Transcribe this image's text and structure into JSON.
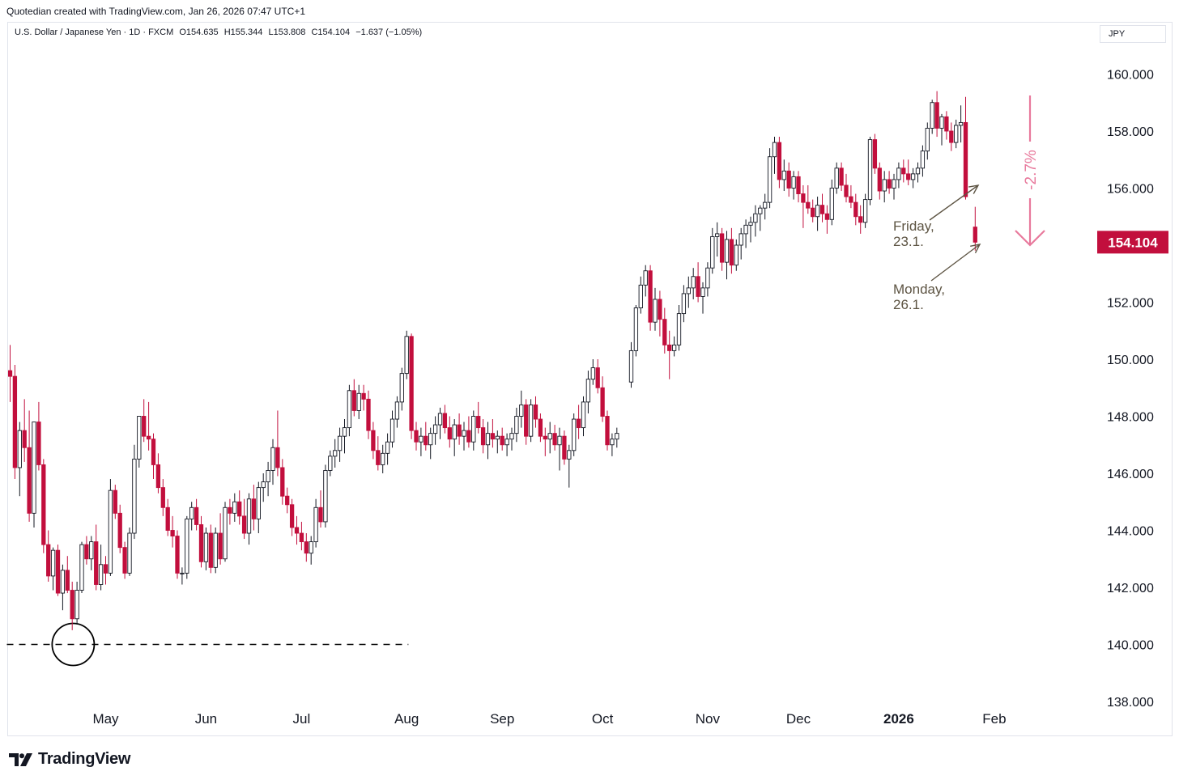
{
  "header": {
    "text": "Quotedian created with TradingView.com, Jan 26, 2026 07:47 UTC+1"
  },
  "legend": {
    "symbol": "U.S. Dollar / Japanese Yen · 1D · FXCM",
    "open": "O154.635",
    "high": "H155.344",
    "low": "L153.808",
    "close": "C154.104",
    "change": "−1.637 (−1.05%)"
  },
  "currency": "JPY",
  "brand": "TradingView",
  "colors": {
    "up": "#ffffff",
    "up_border": "#131722",
    "down": "#c20f3d",
    "price_label": "#c20f3d",
    "annotation": "#e8799c",
    "note": "#5d5443"
  },
  "chart_data": {
    "type": "candlestick",
    "title": "U.S. Dollar / Japanese Yen",
    "ylabel": "JPY",
    "ylim": [
      137.8,
      161.0
    ],
    "yticks": [
      138,
      140,
      142,
      144,
      146,
      148,
      150,
      152,
      154,
      156,
      158,
      160
    ],
    "ytick_labels": [
      "138.000",
      "140.000",
      "142.000",
      "144.000",
      "146.000",
      "148.000",
      "150.000",
      "152.000",
      "154.000",
      "156.000",
      "158.000",
      "160.000"
    ],
    "xticks": [
      {
        "label": "May",
        "bar": 20
      },
      {
        "label": "Jun",
        "bar": 41
      },
      {
        "label": "Jul",
        "bar": 61
      },
      {
        "label": "Aug",
        "bar": 83
      },
      {
        "label": "Sep",
        "bar": 103
      },
      {
        "label": "Oct",
        "bar": 124
      },
      {
        "label": "Nov",
        "bar": 146
      },
      {
        "label": "Dec",
        "bar": 165
      },
      {
        "label": "2026",
        "bar": 186
      },
      {
        "label": "Feb",
        "bar": 206
      }
    ],
    "current_price": "154.104",
    "current_value": 154.104,
    "candles": [
      [
        0,
        149.6,
        150.5,
        148.5,
        149.4
      ],
      [
        1,
        149.4,
        149.8,
        145.8,
        146.2
      ],
      [
        2,
        146.2,
        147.8,
        145.2,
        147.5
      ],
      [
        3,
        147.5,
        148.6,
        146.4,
        146.9
      ],
      [
        4,
        146.9,
        148.2,
        144.3,
        144.6
      ],
      [
        5,
        144.6,
        147.8,
        144.1,
        147.8
      ],
      [
        6,
        147.8,
        148.5,
        146.1,
        146.3
      ],
      [
        7,
        146.3,
        146.5,
        143.2,
        143.5
      ],
      [
        8,
        143.5,
        144.0,
        142.2,
        142.4
      ],
      [
        9,
        142.4,
        143.4,
        141.9,
        143.3
      ],
      [
        10,
        143.3,
        143.5,
        141.7,
        141.8
      ],
      [
        11,
        141.8,
        142.8,
        141.2,
        142.6
      ],
      [
        12,
        142.6,
        143.1,
        141.8,
        141.9
      ],
      [
        13,
        141.9,
        142.2,
        140.5,
        140.9
      ],
      [
        14,
        140.9,
        142.2,
        140.7,
        141.9
      ],
      [
        15,
        141.9,
        143.6,
        141.8,
        143.5
      ],
      [
        16,
        143.5,
        143.8,
        142.8,
        143.0
      ],
      [
        17,
        143.0,
        143.8,
        142.6,
        143.6
      ],
      [
        18,
        143.6,
        144.2,
        141.9,
        142.1
      ],
      [
        19,
        142.1,
        143.5,
        141.9,
        142.8
      ],
      [
        20,
        142.8,
        143.1,
        142.1,
        142.5
      ],
      [
        21,
        142.5,
        145.8,
        142.4,
        145.4
      ],
      [
        22,
        145.4,
        145.6,
        144.4,
        144.6
      ],
      [
        23,
        144.6,
        144.9,
        143.2,
        143.4
      ],
      [
        24,
        143.4,
        143.6,
        142.3,
        142.5
      ],
      [
        25,
        142.5,
        144.1,
        142.4,
        143.9
      ],
      [
        26,
        143.9,
        147.0,
        143.7,
        146.5
      ],
      [
        27,
        146.5,
        148.0,
        146.2,
        148.0
      ],
      [
        28,
        148.0,
        148.6,
        147.1,
        147.3
      ],
      [
        29,
        147.3,
        148.5,
        146.8,
        147.2
      ],
      [
        30,
        147.2,
        147.4,
        145.8,
        146.3
      ],
      [
        31,
        146.3,
        146.7,
        145.3,
        145.5
      ],
      [
        32,
        145.5,
        145.8,
        144.5,
        144.8
      ],
      [
        33,
        144.8,
        145.1,
        143.8,
        144.0
      ],
      [
        34,
        144.0,
        144.5,
        143.4,
        143.8
      ],
      [
        35,
        143.8,
        144.0,
        142.3,
        142.5
      ],
      [
        36,
        142.5,
        142.7,
        142.1,
        142.5
      ],
      [
        37,
        142.5,
        144.5,
        142.3,
        144.4
      ],
      [
        38,
        144.4,
        145.0,
        144.0,
        144.8
      ],
      [
        39,
        144.8,
        145.1,
        144.0,
        144.2
      ],
      [
        40,
        144.2,
        144.5,
        142.7,
        142.9
      ],
      [
        41,
        142.9,
        144.1,
        142.6,
        143.9
      ],
      [
        42,
        143.9,
        144.2,
        142.5,
        142.7
      ],
      [
        43,
        142.7,
        144.1,
        142.5,
        143.9
      ],
      [
        44,
        143.9,
        144.6,
        142.8,
        143.0
      ],
      [
        45,
        143.0,
        145.0,
        142.9,
        144.8
      ],
      [
        46,
        144.8,
        145.1,
        144.2,
        144.6
      ],
      [
        47,
        144.6,
        145.3,
        144.3,
        145.0
      ],
      [
        48,
        145.0,
        145.4,
        144.2,
        144.5
      ],
      [
        49,
        144.5,
        145.1,
        143.7,
        143.9
      ],
      [
        50,
        143.9,
        145.3,
        143.5,
        145.1
      ],
      [
        51,
        145.1,
        145.6,
        144.0,
        144.4
      ],
      [
        52,
        144.4,
        145.7,
        143.9,
        145.5
      ],
      [
        53,
        145.5,
        146.0,
        145.0,
        145.7
      ],
      [
        54,
        145.7,
        146.4,
        145.2,
        146.1
      ],
      [
        55,
        146.1,
        147.2,
        145.6,
        146.9
      ],
      [
        56,
        146.9,
        148.2,
        145.9,
        146.2
      ],
      [
        57,
        146.2,
        146.5,
        144.9,
        145.2
      ],
      [
        58,
        145.2,
        145.5,
        144.6,
        144.9
      ],
      [
        59,
        144.9,
        145.1,
        143.8,
        144.1
      ],
      [
        60,
        144.1,
        144.5,
        143.5,
        143.9
      ],
      [
        61,
        143.9,
        144.3,
        143.3,
        143.6
      ],
      [
        62,
        143.6,
        143.9,
        142.9,
        143.2
      ],
      [
        63,
        143.2,
        143.8,
        142.8,
        143.6
      ],
      [
        64,
        143.6,
        145.1,
        143.4,
        144.8
      ],
      [
        65,
        144.8,
        145.4,
        144.1,
        144.3
      ],
      [
        66,
        144.3,
        146.3,
        144.1,
        146.1
      ],
      [
        67,
        146.1,
        146.8,
        145.9,
        146.6
      ],
      [
        68,
        146.6,
        147.2,
        146.2,
        146.8
      ],
      [
        69,
        146.8,
        147.6,
        146.4,
        147.3
      ],
      [
        70,
        147.3,
        147.9,
        146.7,
        147.6
      ],
      [
        71,
        147.6,
        149.1,
        147.3,
        148.9
      ],
      [
        72,
        148.9,
        149.3,
        148.0,
        148.2
      ],
      [
        73,
        148.2,
        149.1,
        147.9,
        148.8
      ],
      [
        74,
        148.8,
        149.1,
        148.2,
        148.6
      ],
      [
        75,
        148.6,
        148.9,
        147.2,
        147.5
      ],
      [
        76,
        147.5,
        147.8,
        146.5,
        146.8
      ],
      [
        77,
        146.8,
        147.3,
        146.1,
        146.3
      ],
      [
        78,
        146.3,
        147.0,
        146.0,
        146.7
      ],
      [
        79,
        146.7,
        147.4,
        146.3,
        147.1
      ],
      [
        80,
        147.1,
        148.2,
        146.9,
        147.9
      ],
      [
        81,
        147.9,
        148.7,
        147.6,
        148.5
      ],
      [
        82,
        148.5,
        149.7,
        148.2,
        149.5
      ],
      [
        83,
        149.5,
        151.0,
        149.3,
        150.8
      ],
      [
        84,
        150.8,
        150.9,
        147.2,
        147.5
      ],
      [
        85,
        147.5,
        147.8,
        146.8,
        147.1
      ],
      [
        86,
        147.1,
        147.6,
        146.6,
        147.3
      ],
      [
        87,
        147.3,
        147.8,
        146.8,
        147.0
      ],
      [
        88,
        147.0,
        147.6,
        146.5,
        147.4
      ],
      [
        89,
        147.4,
        148.0,
        147.0,
        147.7
      ],
      [
        90,
        147.7,
        148.3,
        147.2,
        148.1
      ],
      [
        91,
        148.1,
        148.4,
        147.4,
        147.6
      ],
      [
        92,
        147.6,
        148.0,
        146.9,
        147.2
      ],
      [
        93,
        147.2,
        147.9,
        146.6,
        147.7
      ],
      [
        94,
        147.7,
        148.1,
        147.0,
        147.3
      ],
      [
        95,
        147.3,
        147.8,
        146.8,
        147.5
      ],
      [
        96,
        147.5,
        148.0,
        146.9,
        147.1
      ],
      [
        97,
        147.1,
        148.2,
        146.8,
        148.0
      ],
      [
        98,
        148.0,
        148.5,
        147.4,
        147.6
      ],
      [
        99,
        147.6,
        147.9,
        146.7,
        147.0
      ],
      [
        100,
        147.0,
        147.8,
        146.5,
        147.4
      ],
      [
        101,
        147.4,
        147.9,
        146.9,
        147.2
      ],
      [
        102,
        147.2,
        147.5,
        146.7,
        147.3
      ],
      [
        103,
        147.3,
        147.6,
        146.8,
        147.0
      ],
      [
        104,
        147.0,
        147.4,
        146.6,
        147.2
      ],
      [
        105,
        147.2,
        147.6,
        146.8,
        147.4
      ],
      [
        106,
        147.4,
        148.3,
        147.1,
        148.0
      ],
      [
        107,
        148.0,
        148.9,
        147.6,
        148.4
      ],
      [
        108,
        148.4,
        148.6,
        147.0,
        147.3
      ],
      [
        109,
        147.3,
        148.6,
        147.1,
        148.4
      ],
      [
        110,
        148.4,
        148.7,
        147.6,
        147.9
      ],
      [
        111,
        147.9,
        148.1,
        147.1,
        147.3
      ],
      [
        112,
        147.3,
        147.6,
        146.6,
        147.2
      ],
      [
        113,
        147.2,
        147.8,
        146.7,
        147.4
      ],
      [
        114,
        147.4,
        147.7,
        146.8,
        147.0
      ],
      [
        115,
        147.0,
        147.6,
        146.1,
        147.3
      ],
      [
        116,
        147.3,
        147.5,
        146.3,
        146.5
      ],
      [
        117,
        146.5,
        147.0,
        145.5,
        146.8
      ],
      [
        118,
        146.8,
        148.1,
        146.6,
        147.9
      ],
      [
        119,
        147.9,
        148.4,
        147.2,
        147.6
      ],
      [
        120,
        147.6,
        148.7,
        147.3,
        148.5
      ],
      [
        121,
        148.5,
        149.6,
        148.1,
        149.3
      ],
      [
        122,
        149.3,
        150.0,
        149.1,
        149.7
      ],
      [
        123,
        149.7,
        150.0,
        148.8,
        149.0
      ],
      [
        124,
        149.0,
        149.4,
        147.8,
        148.0
      ],
      [
        125,
        148.0,
        148.2,
        146.8,
        147.0
      ],
      [
        126,
        147.0,
        147.4,
        146.6,
        147.2
      ],
      [
        127,
        147.2,
        147.6,
        146.9,
        147.4
      ]
    ],
    "candles_recent": [
      [
        130,
        149.2,
        150.6,
        149.0,
        150.3
      ],
      [
        131,
        150.3,
        151.9,
        150.1,
        151.8
      ],
      [
        132,
        151.8,
        152.9,
        151.6,
        152.6
      ],
      [
        133,
        152.6,
        153.3,
        152.2,
        153.1
      ],
      [
        134,
        153.1,
        153.3,
        151.0,
        151.3
      ],
      [
        135,
        151.3,
        152.5,
        151.0,
        152.1
      ],
      [
        136,
        152.1,
        152.4,
        150.8,
        151.4
      ],
      [
        137,
        151.4,
        151.8,
        150.2,
        150.5
      ],
      [
        138,
        150.5,
        151.0,
        149.3,
        150.3
      ],
      [
        139,
        150.3,
        150.8,
        150.1,
        150.5
      ],
      [
        140,
        150.5,
        151.9,
        150.3,
        151.6
      ],
      [
        141,
        151.6,
        152.6,
        151.3,
        152.3
      ],
      [
        142,
        152.3,
        152.9,
        151.8,
        152.5
      ],
      [
        143,
        152.5,
        153.2,
        152.1,
        152.9
      ],
      [
        144,
        152.9,
        153.4,
        152.0,
        152.2
      ],
      [
        145,
        152.2,
        152.7,
        151.6,
        152.5
      ],
      [
        146,
        152.5,
        153.4,
        152.2,
        153.2
      ],
      [
        147,
        153.2,
        154.6,
        153.0,
        154.3
      ],
      [
        148,
        154.3,
        154.8,
        153.6,
        154.4
      ],
      [
        149,
        154.4,
        154.6,
        153.1,
        153.4
      ],
      [
        150,
        153.4,
        154.5,
        152.8,
        154.2
      ],
      [
        151,
        154.2,
        154.6,
        153.0,
        153.3
      ],
      [
        152,
        153.3,
        154.2,
        153.1,
        154.0
      ],
      [
        153,
        154.0,
        154.6,
        153.5,
        154.4
      ],
      [
        154,
        154.4,
        154.9,
        153.9,
        154.7
      ],
      [
        155,
        154.7,
        155.0,
        154.1,
        154.8
      ],
      [
        156,
        154.8,
        155.4,
        154.3,
        155.1
      ],
      [
        157,
        155.1,
        155.4,
        154.5,
        155.3
      ],
      [
        158,
        155.3,
        155.8,
        154.9,
        155.5
      ],
      [
        159,
        155.5,
        157.4,
        155.3,
        157.1
      ],
      [
        160,
        157.1,
        157.8,
        156.5,
        157.6
      ],
      [
        161,
        157.6,
        157.8,
        156.0,
        156.3
      ],
      [
        162,
        156.3,
        157.0,
        155.9,
        156.6
      ],
      [
        163,
        156.6,
        156.9,
        155.7,
        156.0
      ],
      [
        164,
        156.0,
        156.6,
        155.6,
        156.4
      ],
      [
        165,
        156.4,
        156.6,
        155.5,
        155.8
      ],
      [
        166,
        155.8,
        156.1,
        154.6,
        155.5
      ],
      [
        167,
        155.5,
        156.1,
        155.1,
        155.3
      ],
      [
        168,
        155.3,
        155.6,
        154.8,
        155.0
      ],
      [
        169,
        155.0,
        155.7,
        154.5,
        155.4
      ],
      [
        170,
        155.4,
        155.8,
        154.8,
        155.1
      ],
      [
        171,
        155.1,
        155.4,
        154.4,
        154.9
      ],
      [
        172,
        154.9,
        156.3,
        154.7,
        156.0
      ],
      [
        173,
        156.0,
        156.9,
        155.8,
        156.7
      ],
      [
        174,
        156.7,
        156.9,
        155.9,
        156.1
      ],
      [
        175,
        156.1,
        156.5,
        155.5,
        155.7
      ],
      [
        176,
        155.7,
        156.1,
        155.3,
        155.5
      ],
      [
        177,
        155.5,
        155.8,
        154.7,
        155.0
      ],
      [
        178,
        155.0,
        155.4,
        154.4,
        154.8
      ],
      [
        179,
        154.8,
        155.8,
        154.6,
        155.6
      ],
      [
        180,
        155.6,
        157.8,
        155.4,
        157.7
      ],
      [
        181,
        157.7,
        157.9,
        156.5,
        156.7
      ],
      [
        182,
        156.7,
        156.9,
        155.6,
        155.9
      ],
      [
        183,
        155.9,
        156.6,
        155.5,
        156.3
      ],
      [
        184,
        156.3,
        156.6,
        155.8,
        156.0
      ],
      [
        185,
        156.0,
        156.5,
        155.6,
        156.3
      ],
      [
        186,
        156.3,
        156.9,
        156.0,
        156.7
      ],
      [
        187,
        156.7,
        157.0,
        156.2,
        156.5
      ],
      [
        188,
        156.5,
        157.0,
        156.1,
        156.3
      ],
      [
        189,
        156.3,
        156.7,
        156.0,
        156.5
      ],
      [
        190,
        156.5,
        156.9,
        156.2,
        156.7
      ],
      [
        191,
        156.7,
        157.5,
        156.4,
        157.3
      ],
      [
        192,
        157.3,
        158.3,
        157.0,
        158.1
      ],
      [
        193,
        158.1,
        159.1,
        157.9,
        159.0
      ],
      [
        194,
        159.0,
        159.4,
        157.8,
        158.1
      ],
      [
        195,
        158.1,
        158.6,
        157.5,
        158.5
      ],
      [
        196,
        158.5,
        158.7,
        157.7,
        158.0
      ],
      [
        197,
        158.0,
        158.3,
        157.3,
        157.6
      ],
      [
        198,
        157.6,
        158.4,
        157.4,
        158.2
      ],
      [
        199,
        158.2,
        158.9,
        157.6,
        158.3
      ],
      [
        200,
        158.3,
        159.2,
        155.6,
        155.7
      ],
      [
        202,
        154.635,
        155.344,
        153.808,
        154.104
      ]
    ],
    "reference_line": {
      "value": 140.0,
      "from_bar": 0,
      "to_bar": 82
    },
    "annotations": [
      {
        "text_1": "Friday,",
        "text_2": "23.1."
      },
      {
        "text_1": "Monday,",
        "text_2": "26.1."
      },
      {
        "text": "-2.7%"
      }
    ]
  }
}
